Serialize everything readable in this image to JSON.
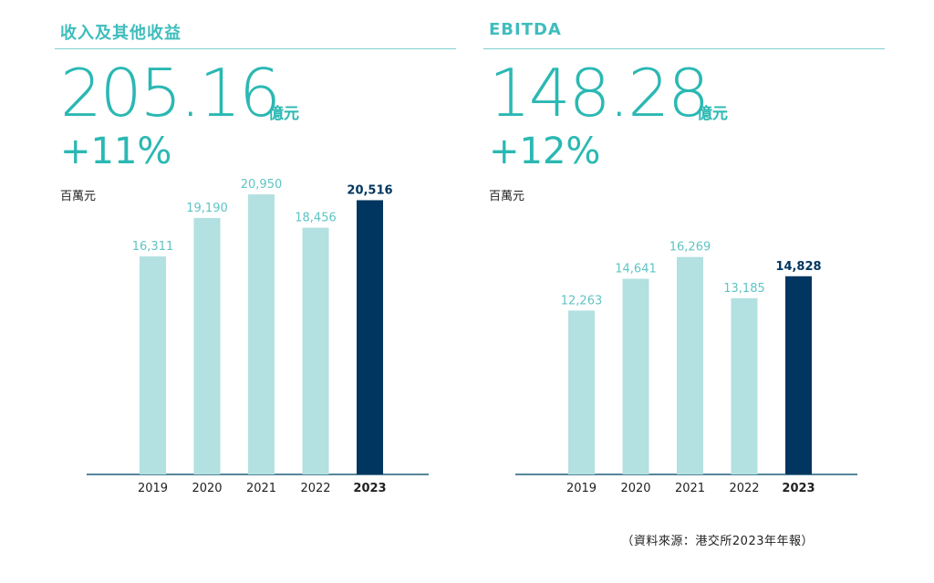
{
  "source_note": "（資料來源：港交所2023年年報）",
  "colors": {
    "teal": "#2bb8b3",
    "bar_light": "#b3e0e1",
    "bar_dark": "#003660",
    "axis": "#1f5f7a"
  },
  "chart_data": [
    {
      "type": "bar",
      "title": "收入及其他收益",
      "headline_value": "205.16",
      "headline_unit": "億元",
      "growth": "+11%",
      "ylabel": "百萬元",
      "categories": [
        "2019",
        "2020",
        "2021",
        "2022",
        "2023"
      ],
      "values": [
        16311,
        19190,
        20950,
        18456,
        20516
      ],
      "value_labels": [
        "16,311",
        "19,190",
        "20,950",
        "18,456",
        "20,516"
      ],
      "highlight": "2023",
      "ylim": [
        0,
        22000
      ]
    },
    {
      "type": "bar",
      "title": "EBITDA",
      "headline_value": "148.28",
      "headline_unit": "億元",
      "growth": "+12%",
      "ylabel": "百萬元",
      "categories": [
        "2019",
        "2020",
        "2021",
        "2022",
        "2023"
      ],
      "values": [
        12263,
        14641,
        16269,
        13185,
        14828
      ],
      "value_labels": [
        "12,263",
        "14,641",
        "16,269",
        "13,185",
        "14,828"
      ],
      "highlight": "2023",
      "ylim": [
        0,
        17500
      ]
    }
  ]
}
